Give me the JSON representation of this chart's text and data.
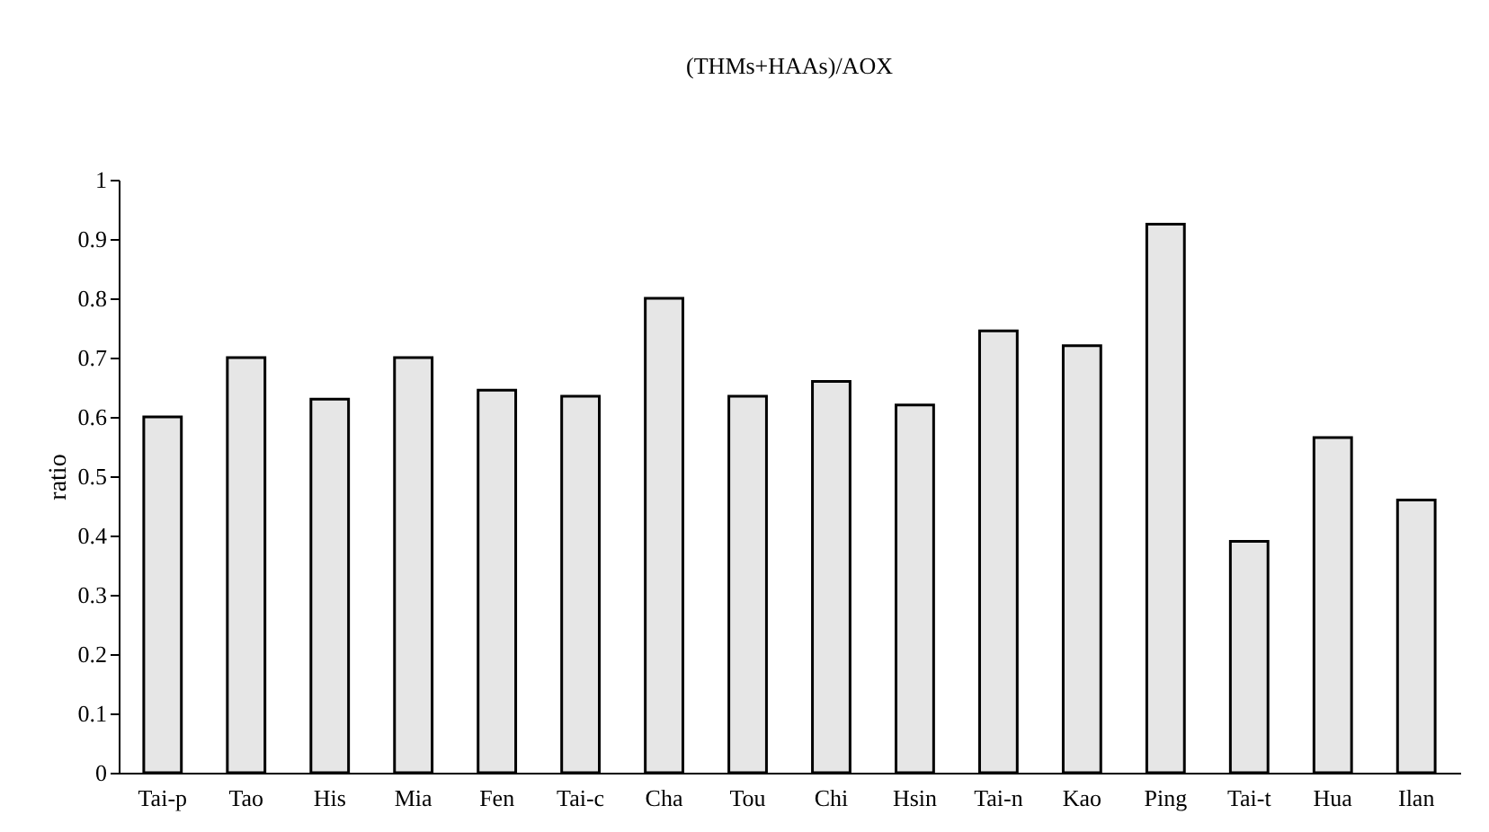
{
  "chart_data": {
    "type": "bar",
    "title": "(THMs+HAAs)/AOX",
    "ylabel": "ratio",
    "categories": [
      "Tai-p",
      "Tao",
      "His",
      "Mia",
      "Fen",
      "Tai-c",
      "Cha",
      "Tou",
      "Chi",
      "Hsin",
      "Tai-n",
      "Kao",
      "Ping",
      "Tai-t",
      "Hua",
      "Ilan"
    ],
    "values": [
      0.6,
      0.7,
      0.63,
      0.7,
      0.645,
      0.635,
      0.8,
      0.635,
      0.66,
      0.62,
      0.745,
      0.72,
      0.925,
      0.39,
      0.565,
      0.46
    ],
    "color": "#e6e6e6",
    "ylim": [
      0,
      1
    ],
    "yticks": [
      {
        "value": 0,
        "label": "0"
      },
      0.1,
      0.2,
      0.3,
      0.4,
      0.5,
      0.6,
      0.7,
      0.8,
      0.9,
      {
        "value": 1,
        "label": "1"
      }
    ],
    "grid": false
  }
}
